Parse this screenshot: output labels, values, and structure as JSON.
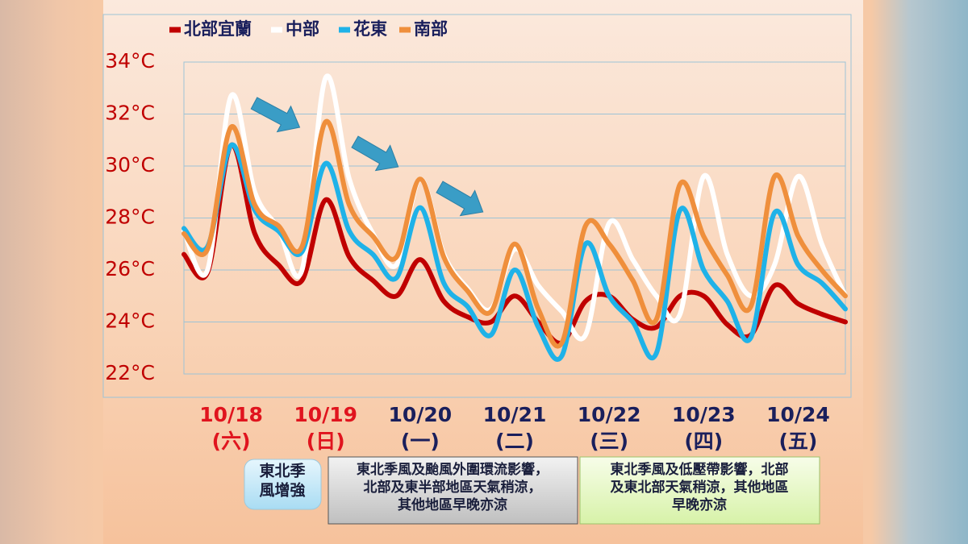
{
  "chart_data": {
    "type": "line",
    "categories": [
      null,
      null,
      "10/18",
      null,
      null,
      null,
      "10/19",
      null,
      null,
      null,
      "10/20",
      null,
      null,
      null,
      "10/21",
      null,
      null,
      null,
      "10/22",
      null,
      null,
      null,
      "10/23",
      null,
      null,
      null,
      "10/24",
      null,
      null
    ],
    "x_sublabels": [
      null,
      null,
      "(六)",
      null,
      null,
      null,
      "(日)",
      null,
      null,
      null,
      "(一)",
      null,
      null,
      null,
      "(二)",
      null,
      null,
      null,
      "(三)",
      null,
      null,
      null,
      "(四)",
      null,
      null,
      null,
      "(五)",
      null,
      null
    ],
    "x_label_colors": {
      "weekend": "#e0141e",
      "weekday": "#1a1f5c"
    },
    "weekend_labels": [
      "10/18",
      "10/19"
    ],
    "series": [
      {
        "name": "北部宜蘭",
        "color": "#c00000",
        "values": [
          26.6,
          25.9,
          30.8,
          27.4,
          26.2,
          25.6,
          28.7,
          26.5,
          25.6,
          25.0,
          26.4,
          24.8,
          24.2,
          24.0,
          25.0,
          24.0,
          23.2,
          24.8,
          25.0,
          24.1,
          23.8,
          25.0,
          25.0,
          23.9,
          23.5,
          25.4,
          24.7,
          24.3,
          24.0
        ]
      },
      {
        "name": "中部",
        "color": "#ffffff",
        "values": [
          27.5,
          26.0,
          32.7,
          29.0,
          27.6,
          26.0,
          33.4,
          29.5,
          27.4,
          26.2,
          29.5,
          26.6,
          25.3,
          24.5,
          26.8,
          25.4,
          24.4,
          23.5,
          27.8,
          26.4,
          25.0,
          24.3,
          29.6,
          26.6,
          25.0,
          26.2,
          29.6,
          27.0,
          25.0
        ]
      },
      {
        "name": "花東",
        "color": "#1fb2e8",
        "values": [
          27.6,
          26.9,
          30.8,
          28.3,
          27.5,
          26.7,
          30.1,
          27.5,
          26.6,
          25.7,
          28.4,
          25.5,
          24.6,
          23.5,
          26.0,
          23.8,
          22.7,
          27.0,
          25.0,
          24.0,
          22.8,
          28.3,
          26.0,
          24.8,
          23.4,
          28.2,
          26.2,
          25.5,
          24.5
        ]
      },
      {
        "name": "南部",
        "color": "#ef8f3c",
        "values": [
          27.4,
          26.8,
          31.5,
          28.5,
          27.7,
          26.9,
          31.7,
          28.5,
          27.3,
          26.5,
          29.5,
          26.5,
          25.2,
          24.4,
          27.0,
          24.5,
          23.2,
          27.7,
          27.0,
          25.6,
          24.1,
          29.3,
          27.3,
          25.8,
          24.6,
          29.6,
          27.3,
          26.0,
          25.0
        ]
      }
    ],
    "ylim": [
      22,
      34
    ],
    "yticks": [
      {
        "value": 22,
        "label": "22°C"
      },
      {
        "value": 24,
        "label": "24°C"
      },
      {
        "value": 26,
        "label": "26°C"
      },
      {
        "value": 28,
        "label": "28°C"
      },
      {
        "value": 30,
        "label": "30°C"
      },
      {
        "value": 32,
        "label": "32°C"
      },
      {
        "value": 34,
        "label": "34°C"
      }
    ],
    "grid": true,
    "notes": [
      {
        "lines": [
          "東北季",
          "風增強"
        ]
      },
      {
        "lines": [
          "東北季風及颱風外圍環流影響，",
          "北部及東半部地區天氣稍涼，",
          "其他地區早晚亦涼"
        ]
      },
      {
        "lines": [
          "東北季風及低壓帶影響，北部",
          "及東北部天氣稍涼，其他地區",
          "早晚亦涼"
        ]
      }
    ]
  }
}
